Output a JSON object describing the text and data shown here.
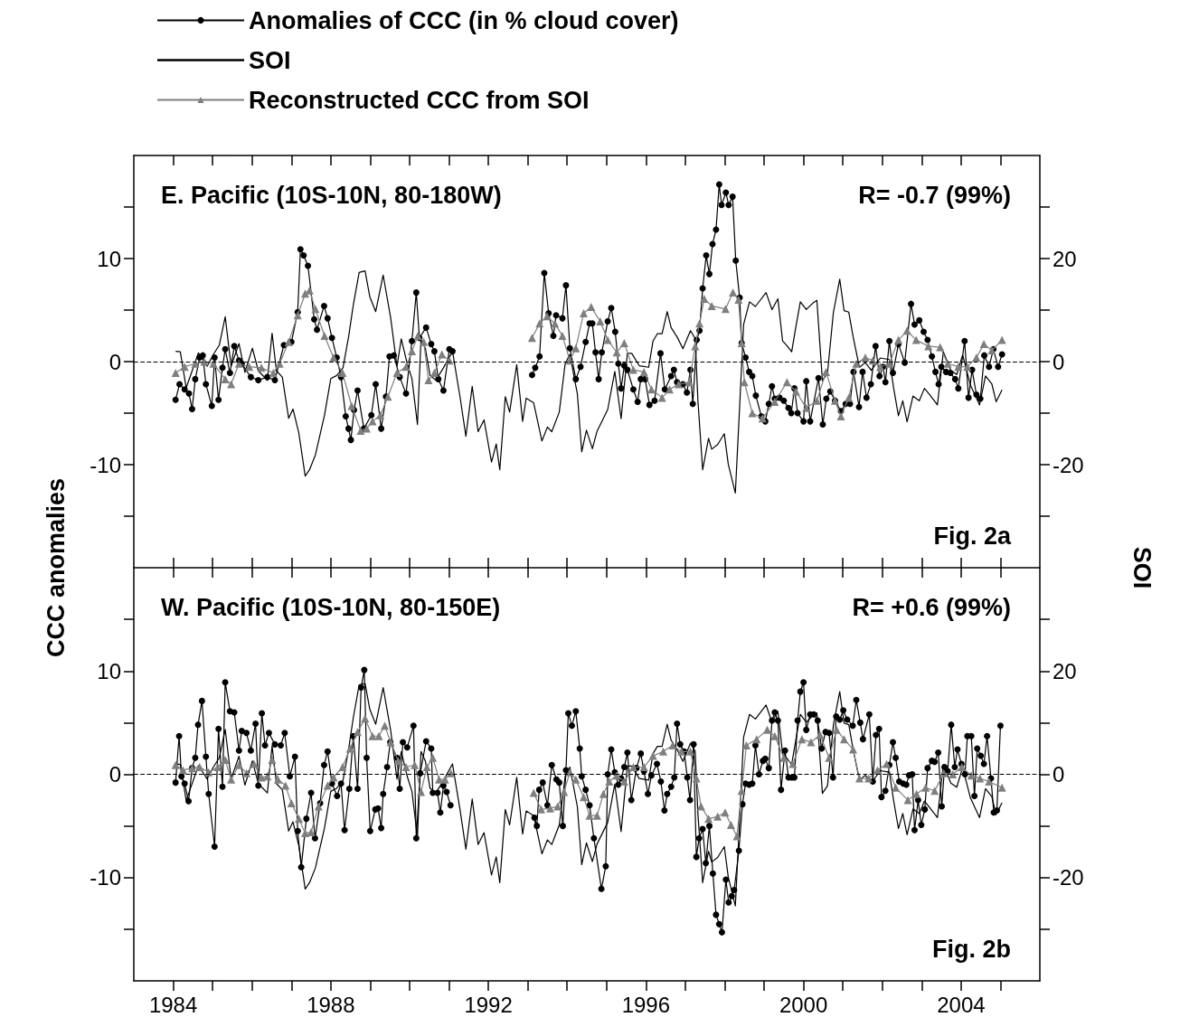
{
  "chart_data": [
    {
      "type": "line",
      "ylabel": "CCC anomalies",
      "y2label": "SOI",
      "legend": "top left",
      "tick_labels": "y",
      "annotations": [
        "E. Pacific (10S-10N, 80-180W)",
        "R= -0.7 (99%)",
        "Fig. 2a"
      ],
      "xlim": [
        1983,
        2006
      ],
      "xticks": [
        1984,
        1985,
        1986,
        1987,
        1988,
        1989,
        1990,
        1991,
        1992,
        1993,
        1994,
        1995,
        1996,
        1997,
        1998,
        1999,
        2000,
        2001,
        2002,
        2003,
        2004,
        2005
      ],
      "ylim": [
        -20,
        20
      ],
      "yticks": [
        {
          "value": -15,
          "label": null
        },
        -10,
        {
          "value": -5,
          "label": null
        },
        0,
        {
          "value": 5,
          "label": null
        },
        10,
        {
          "value": 15,
          "label": null
        }
      ],
      "y2lim": [
        -40,
        40
      ],
      "y2ticks": [
        {
          "value": -30,
          "label": null
        },
        -20,
        {
          "value": -10,
          "label": null
        },
        0,
        {
          "value": 10,
          "label": null
        },
        20,
        {
          "value": 30,
          "label": null
        }
      ],
      "ref_lines": [
        {
          "axis": "y",
          "value": 0,
          "line_style": "dashed",
          "color": "#000000"
        }
      ],
      "series": [
        {
          "name": "Anomalies of CCC (in % cloud cover)",
          "color": "#000000",
          "marker": "circle",
          "x": [
            1984.06,
            1984.16,
            1984.29,
            1984.4,
            1984.48,
            1984.56,
            1984.67,
            1984.75,
            1984.83,
            1984.98,
            1985.05,
            1985.15,
            1985.25,
            1985.32,
            1985.44,
            1985.55,
            1985.67,
            1985.74,
            1985.97,
            1986.16,
            1986.39,
            1986.58,
            1986.81,
            1987.0,
            1987.16,
            1987.23,
            1987.31,
            1987.42,
            1987.58,
            1987.65,
            1987.83,
            1987.92,
            1988.03,
            1988.15,
            1988.26,
            1988.38,
            1988.45,
            1988.51,
            1988.59,
            1988.68,
            1988.84,
            1989.03,
            1989.14,
            1989.28,
            1989.4,
            1989.49,
            1989.6,
            1989.75,
            1989.91,
            1990.06,
            1990.17,
            1990.25,
            1990.42,
            1990.55,
            1990.63,
            1990.73,
            1990.86,
            1991.01,
            1991.09,
            1992.0,
            1993.11,
            1993.19,
            1993.3,
            1993.42,
            1993.53,
            1993.65,
            1993.72,
            1993.88,
            1993.97,
            1994.07,
            1994.22,
            1994.34,
            1994.47,
            1994.57,
            1994.64,
            1994.72,
            1994.8,
            1994.88,
            1995.03,
            1995.12,
            1995.22,
            1995.3,
            1995.37,
            1995.45,
            1995.53,
            1995.68,
            1995.79,
            1995.87,
            1995.98,
            1996.09,
            1996.22,
            1996.37,
            1996.48,
            1996.64,
            1996.71,
            1996.79,
            1996.94,
            1997.04,
            1997.13,
            1997.19,
            1997.29,
            1997.36,
            1997.44,
            1997.53,
            1997.61,
            1997.69,
            1997.78,
            1997.86,
            1997.92,
            1998.03,
            1998.1,
            1998.2,
            1998.28,
            1998.38,
            1998.43,
            1998.53,
            1998.62,
            1998.7,
            1998.79,
            1998.93,
            1999.03,
            1999.12,
            1999.2,
            1999.27,
            1999.39,
            1999.5,
            1999.62,
            1999.69,
            1999.77,
            1999.85,
            2000.0,
            2000.07,
            2000.17,
            2000.38,
            2000.49,
            2000.58,
            2000.68,
            2000.8,
            2000.95,
            2001.07,
            2001.18,
            2001.27,
            2001.41,
            2001.5,
            2001.6,
            2001.71,
            2001.83,
            2001.93,
            2002.02,
            2002.08,
            2002.18,
            2002.27,
            2002.41,
            2002.57,
            2002.73,
            2002.82,
            2002.94,
            2003.05,
            2003.15,
            2003.26,
            2003.35,
            2003.43,
            2003.5,
            2003.62,
            2003.73,
            2003.85,
            2003.93,
            2004.09,
            2004.19,
            2004.28,
            2004.39,
            2004.49,
            2004.59,
            2004.71,
            2004.82,
            2004.94,
            2005.04
          ],
          "values": [
            -3.7,
            -2.2,
            -2.7,
            -3.1,
            -4.6,
            -1.7,
            0.4,
            0.6,
            -2.2,
            -4.3,
            0.4,
            -3.7,
            -0.6,
            1.2,
            -1.1,
            1.5,
            0.1,
            -0.2,
            -1.5,
            -1.8,
            -1.5,
            -1.8,
            1.6,
            1.9,
            4.8,
            10.9,
            10.3,
            9.3,
            4.1,
            3.1,
            5.4,
            4.2,
            2.3,
            0.4,
            -1.5,
            -5.3,
            -6.5,
            -7.6,
            -4.7,
            -2.8,
            -6.5,
            -5.2,
            -2.2,
            -6.5,
            -3.4,
            0.5,
            0.6,
            -1.5,
            -3.1,
            2.0,
            6.7,
            2.3,
            3.3,
            1.7,
            1.0,
            -1.7,
            -2.8,
            1.2,
            1.0,
            null,
            -1.3,
            -0.6,
            0.5,
            8.6,
            4.7,
            2.5,
            4.5,
            4.2,
            7.4,
            1.3,
            -1.7,
            -0.5,
            1.9,
            3.7,
            3.7,
            0.9,
            -1.7,
            0.9,
            3.9,
            5.2,
            2.9,
            -0.2,
            -2.6,
            -0.4,
            -0.8,
            -2.7,
            -3.9,
            -1.7,
            -1.7,
            -4.2,
            -3.8,
            0.8,
            -2.7,
            -1.4,
            -0.8,
            -2.0,
            -2.2,
            -3.0,
            -0.8,
            -4.1,
            2.1,
            3.0,
            7.1,
            10.3,
            8.5,
            11.4,
            12.8,
            17.2,
            15.2,
            16.4,
            15.2,
            16.0,
            9.8,
            6.2,
            1.8,
            0.4,
            -1.0,
            -1.4,
            -3.3,
            -5.3,
            -5.8,
            -4.1,
            -2.4,
            -3.6,
            -3.5,
            -3.8,
            -4.5,
            -5.0,
            -2.6,
            -5.0,
            -5.8,
            -1.9,
            -5.8,
            -1.6,
            -6.1,
            -3.6,
            -2.9,
            -3.8,
            -4.8,
            -4.1,
            -4.1,
            -1.0,
            -4.4,
            -1.0,
            -3.5,
            -2.2,
            1.5,
            -1.4,
            -0.5,
            -2.0,
            2.0,
            -1.1,
            1.7,
            -0.1,
            5.6,
            3.6,
            4.0,
            2.9,
            2.1,
            0.5,
            -1.0,
            -2.2,
            -0.5,
            -1.0,
            -1.1,
            -1.7,
            -2.6,
            2.0,
            -3.5,
            -0.8,
            -3.2,
            -3.6,
            0.6,
            -0.5,
            1.2,
            -0.5,
            0.7
          ]
        },
        {
          "name": "SOI",
          "color": "#000000",
          "marker": "none",
          "axis": "y2",
          "x": [
            1984.06,
            1984.18,
            1984.33,
            1984.64,
            1984.86,
            1985.02,
            1985.17,
            1985.32,
            1985.47,
            1985.67,
            1985.82,
            1986.01,
            1986.16,
            1986.39,
            1986.51,
            1986.62,
            1986.77,
            1986.93,
            1987.04,
            1987.19,
            1987.35,
            1987.46,
            1987.61,
            1987.84,
            1988.0,
            1988.15,
            1988.31,
            1988.45,
            1988.57,
            1988.72,
            1988.87,
            1988.99,
            1989.14,
            1989.33,
            1989.52,
            1989.68,
            1989.79,
            1989.94,
            1990.06,
            1990.2,
            1990.29,
            1990.4,
            1990.52,
            1990.67,
            1990.86,
            1991.09,
            1991.28,
            1991.43,
            1991.59,
            1991.74,
            1991.89,
            1992.08,
            1992.2,
            1992.29,
            1992.43,
            1992.54,
            1992.72,
            1992.87,
            1992.96,
            1993.15,
            1993.36,
            1993.5,
            1993.61,
            1993.8,
            1993.95,
            1994.07,
            1994.26,
            1994.37,
            1994.49,
            1994.64,
            1994.76,
            1995.03,
            1995.21,
            1995.37,
            1995.53,
            1995.64,
            1995.83,
            1996.07,
            1996.18,
            1996.29,
            1996.41,
            1996.54,
            1996.64,
            1996.79,
            1996.94,
            1997.13,
            1997.25,
            1997.32,
            1997.44,
            1997.59,
            1997.67,
            1997.82,
            1997.99,
            1998.09,
            1998.27,
            1998.36,
            1998.48,
            1998.63,
            1998.78,
            1999.05,
            1999.2,
            1999.35,
            1999.47,
            1999.58,
            1999.7,
            1999.81,
            1999.92,
            2000.07,
            2000.23,
            2000.34,
            2000.48,
            2000.61,
            2000.76,
            2000.92,
            2001.03,
            2001.15,
            2001.26,
            2001.42,
            2001.57,
            2001.72,
            2001.95,
            2002.18,
            2002.29,
            2002.41,
            2002.52,
            2002.63,
            2002.78,
            2002.94,
            2003.07,
            2003.2,
            2003.4,
            2003.55,
            2003.74,
            2003.89,
            2004.04,
            2004.24,
            2004.47,
            2004.62,
            2004.78,
            2004.89,
            2005.04
          ],
          "values": [
            2.0,
            1.9,
            -5.1,
            1.7,
            -0.9,
            1.4,
            3.2,
            8.7,
            -0.9,
            3.5,
            -2.1,
            2.6,
            -1.8,
            -3.6,
            5.5,
            -1.8,
            -3.0,
            -11.0,
            -9.2,
            -13.9,
            -22.2,
            -21.0,
            -18.1,
            -10.4,
            -3.3,
            -2.7,
            -1.2,
            4.7,
            10.9,
            17.3,
            17.6,
            12.6,
            9.7,
            16.8,
            8.5,
            -0.9,
            4.4,
            -0.4,
            -3.3,
            -12.2,
            4.4,
            2.6,
            -2.7,
            -3.6,
            -1.2,
            2.0,
            -6.8,
            -14.5,
            -4.8,
            -13.6,
            -11.3,
            -19.5,
            -16.0,
            -21.0,
            -6.8,
            -9.8,
            -0.6,
            -11.6,
            -7.1,
            -8.0,
            -15.4,
            -12.7,
            -13.6,
            -9.8,
            -0.4,
            1.4,
            -6.3,
            -17.5,
            -13.3,
            -16.9,
            -13.5,
            -9.3,
            -1.9,
            -11.1,
            1.6,
            1.6,
            -0.8,
            -1.1,
            4.0,
            5.4,
            5.4,
            9.7,
            6.6,
            4.8,
            2.5,
            6.0,
            4.5,
            -7.6,
            -21.0,
            -14.9,
            -17.0,
            -16.1,
            -14.0,
            -19.9,
            -25.5,
            -11.7,
            7.2,
            11.6,
            10.7,
            13.4,
            10.1,
            12.2,
            4.0,
            3.1,
            1.9,
            6.9,
            11.6,
            10.1,
            11.3,
            11.9,
            -3.7,
            -2.2,
            9.6,
            16.0,
            9.9,
            9.6,
            4.8,
            -1.1,
            -0.2,
            -1.7,
            0.7,
            0.4,
            -5.2,
            -10.5,
            -7.6,
            -11.7,
            -6.7,
            -7.6,
            -5.2,
            -6.4,
            -8.4,
            1.9,
            -1.7,
            -2.5,
            1.3,
            -4.6,
            -8.4,
            -2.8,
            -4.3,
            -7.8,
            -5.5
          ]
        },
        {
          "name": "Reconstructed CCC from SOI",
          "color": "#7f7f7f",
          "marker": "triangle",
          "x": [
            1984.06,
            1984.29,
            1984.56,
            1984.79,
            1985.02,
            1985.32,
            1985.47,
            1985.67,
            1985.93,
            1986.24,
            1986.54,
            1986.7,
            1986.93,
            1987.16,
            1987.35,
            1987.46,
            1987.61,
            1987.84,
            1988.07,
            1988.3,
            1988.53,
            1988.76,
            1988.91,
            1989.06,
            1989.26,
            1989.45,
            1989.68,
            1989.91,
            1990.06,
            1990.21,
            1990.36,
            1990.48,
            1990.63,
            1990.82,
            1991.01,
            1992.0,
            1993.11,
            1993.3,
            1993.49,
            1993.69,
            1993.88,
            1994.07,
            1994.22,
            1994.42,
            1994.61,
            1994.84,
            1995.03,
            1995.26,
            1995.45,
            1995.68,
            1995.95,
            1996.14,
            1996.41,
            1996.6,
            1996.83,
            1997.1,
            1997.25,
            1997.36,
            1997.48,
            1997.67,
            1998.02,
            1998.21,
            1998.35,
            1998.43,
            1998.5,
            1998.7,
            1998.96,
            1999.27,
            1999.58,
            1999.81,
            2000.07,
            2000.34,
            2000.57,
            2000.8,
            2000.95,
            2001.15,
            2001.34,
            2001.57,
            2001.76,
            2001.95,
            2002.18,
            2002.41,
            2002.63,
            2002.86,
            2003.17,
            2003.47,
            2003.66,
            2003.93,
            2004.16,
            2004.39,
            2004.58,
            2004.78,
            2005.04
          ],
          "values": [
            -1.1,
            -0.5,
            -0.2,
            0.0,
            -0.2,
            -1.7,
            -2.2,
            -0.2,
            -0.5,
            -0.6,
            -1.1,
            -0.2,
            1.9,
            4.5,
            6.6,
            6.9,
            5.1,
            2.5,
            0.4,
            -1.1,
            -4.3,
            -6.7,
            -6.5,
            -5.8,
            -5.2,
            -3.4,
            -1.1,
            -0.5,
            1.0,
            2.5,
            1.9,
            -1.8,
            -1.1,
            0.7,
            0.1,
            null,
            2.3,
            3.7,
            4.4,
            3.7,
            2.5,
            0.1,
            1.3,
            4.7,
            5.3,
            3.9,
            2.1,
            0.9,
            1.8,
            -0.8,
            -1.0,
            -2.7,
            -3.5,
            -2.7,
            -2.2,
            -2.0,
            1.5,
            3.7,
            6.1,
            5.4,
            5.1,
            6.7,
            6.0,
            1.8,
            -2.0,
            -5.0,
            -5.5,
            -3.9,
            -2.0,
            -2.9,
            -4.5,
            -3.8,
            -1.0,
            -3.8,
            -5.3,
            -3.5,
            -0.2,
            0.4,
            0.1,
            -0.5,
            -0.2,
            2.1,
            3.0,
            2.1,
            1.5,
            1.4,
            -0.2,
            -0.5,
            -0.5,
            0.4,
            1.7,
            1.1,
            2.1
          ]
        }
      ]
    },
    {
      "type": "line",
      "annotations": [
        "W. Pacific (10S-10N, 80-150E)",
        "R= +0.6 (99%)",
        "Fig. 2b"
      ],
      "xlim": [
        1983,
        2006
      ],
      "xticks": [
        {
          "value": 1984,
          "label": "1984"
        },
        {
          "value": 1985,
          "label": null
        },
        {
          "value": 1986,
          "label": null
        },
        {
          "value": 1987,
          "label": null
        },
        {
          "value": 1988,
          "label": "1988"
        },
        {
          "value": 1989,
          "label": null
        },
        {
          "value": 1990,
          "label": null
        },
        {
          "value": 1991,
          "label": null
        },
        {
          "value": 1992,
          "label": "1992"
        },
        {
          "value": 1993,
          "label": null
        },
        {
          "value": 1994,
          "label": null
        },
        {
          "value": 1995,
          "label": null
        },
        {
          "value": 1996,
          "label": "1996"
        },
        {
          "value": 1997,
          "label": null
        },
        {
          "value": 1998,
          "label": null
        },
        {
          "value": 1999,
          "label": null
        },
        {
          "value": 2000,
          "label": "2000"
        },
        {
          "value": 2001,
          "label": null
        },
        {
          "value": 2002,
          "label": null
        },
        {
          "value": 2003,
          "label": null
        },
        {
          "value": 2004,
          "label": "2004"
        },
        {
          "value": 2005,
          "label": null
        }
      ],
      "ylim": [
        -20,
        20
      ],
      "yticks": [
        {
          "value": -15,
          "label": null
        },
        -10,
        {
          "value": -5,
          "label": null
        },
        0,
        {
          "value": 5,
          "label": null
        },
        10,
        {
          "value": 15,
          "label": null
        }
      ],
      "y2lim": [
        -40,
        40
      ],
      "y2ticks": [
        {
          "value": -30,
          "label": null
        },
        -20,
        {
          "value": -10,
          "label": null
        },
        0,
        {
          "value": 10,
          "label": null
        },
        20,
        {
          "value": 30,
          "label": null
        }
      ],
      "ref_lines": [
        {
          "axis": "y",
          "value": 0,
          "line_style": "dashed",
          "color": "#000000"
        }
      ],
      "series": [
        {
          "color": "#000000",
          "marker": "circle",
          "x": [
            1984.06,
            1984.15,
            1984.21,
            1984.29,
            1984.39,
            1984.48,
            1984.56,
            1984.63,
            1984.73,
            1984.83,
            1984.9,
            1985.05,
            1985.15,
            1985.25,
            1985.32,
            1985.44,
            1985.55,
            1985.67,
            1985.74,
            1985.86,
            1985.97,
            1986.09,
            1986.16,
            1986.25,
            1986.33,
            1986.43,
            1986.58,
            1986.73,
            1986.83,
            1986.96,
            1987.09,
            1987.16,
            1987.25,
            1987.38,
            1987.5,
            1987.6,
            1987.73,
            1987.83,
            1987.92,
            1988.03,
            1988.16,
            1988.26,
            1988.35,
            1988.47,
            1988.57,
            1988.68,
            1988.77,
            1988.85,
            1988.91,
            1989.0,
            1989.13,
            1989.2,
            1989.28,
            1989.33,
            1989.43,
            1989.51,
            1989.68,
            1989.75,
            1989.83,
            1989.94,
            1990.1,
            1990.17,
            1990.27,
            1990.42,
            1990.55,
            1990.59,
            1990.71,
            1990.78,
            1990.86,
            1990.94,
            1991.04,
            1992.0,
            1993.17,
            1993.23,
            1993.29,
            1993.38,
            1993.5,
            1993.61,
            1993.73,
            1993.8,
            1993.89,
            1993.97,
            1994.03,
            1994.12,
            1994.22,
            1994.32,
            1994.37,
            1994.47,
            1994.57,
            1994.68,
            1994.87,
            1994.98,
            1995.03,
            1995.12,
            1995.21,
            1995.3,
            1995.37,
            1995.45,
            1995.53,
            1995.63,
            1995.76,
            1995.87,
            1995.95,
            1996.05,
            1996.14,
            1996.28,
            1996.38,
            1996.47,
            1996.54,
            1996.64,
            1996.72,
            1996.79,
            1996.87,
            1996.97,
            1997.05,
            1997.12,
            1997.21,
            1997.28,
            1997.35,
            1997.44,
            1997.52,
            1997.61,
            1997.7,
            1997.78,
            1997.86,
            1997.93,
            1998.03,
            1998.1,
            1998.18,
            1998.24,
            1998.36,
            1998.45,
            1998.53,
            1998.62,
            1998.7,
            1998.78,
            1998.87,
            1998.97,
            1999.03,
            1999.12,
            1999.2,
            1999.27,
            1999.35,
            1999.43,
            1999.53,
            1999.62,
            1999.7,
            1999.77,
            1999.85,
            1999.92,
            2000.0,
            2000.07,
            2000.17,
            2000.26,
            2000.36,
            2000.46,
            2000.56,
            2000.65,
            2000.75,
            2000.83,
            2000.92,
            2001.01,
            2001.11,
            2001.25,
            2001.34,
            2001.44,
            2001.51,
            2001.67,
            2001.76,
            2001.84,
            2001.92,
            2001.98,
            2002.08,
            2002.18,
            2002.27,
            2002.34,
            2002.43,
            2002.53,
            2002.61,
            2002.68,
            2002.76,
            2002.82,
            2002.91,
            2002.99,
            2003.08,
            2003.15,
            2003.26,
            2003.33,
            2003.42,
            2003.51,
            2003.58,
            2003.66,
            2003.75,
            2003.84,
            2003.91,
            2004.01,
            2004.1,
            2004.16,
            2004.26,
            2004.34,
            2004.41,
            2004.5,
            2004.58,
            2004.66,
            2004.76,
            2004.83,
            2004.91,
            2005.0
          ],
          "values": [
            -0.8,
            3.7,
            -0.2,
            -0.9,
            -2.6,
            0.6,
            1.6,
            4.8,
            7.1,
            1.7,
            -1.9,
            -7.0,
            4.4,
            -1.2,
            8.9,
            6.1,
            6.0,
            2.3,
            4.2,
            4.0,
            2.3,
            4.9,
            -1.1,
            5.9,
            2.8,
            4.0,
            2.9,
            2.8,
            4.0,
            -0.2,
            1.7,
            -5.5,
            -9.0,
            -4.3,
            -1.8,
            -6.2,
            -2.8,
            0.9,
            2.2,
            -0.9,
            -2.1,
            -0.9,
            -5.4,
            -1.4,
            3.7,
            -1.4,
            8.4,
            10.1,
            1.6,
            -5.5,
            -3.4,
            -3.3,
            -5.2,
            -1.9,
            0.7,
            3.1,
            1.6,
            -1.4,
            3.1,
            2.6,
            4.7,
            -6.2,
            0.1,
            3.2,
            2.5,
            -1.8,
            -1.8,
            -3.7,
            -1.1,
            -1.7,
            -3.0,
            null,
            -4.2,
            -5.0,
            -1.5,
            -0.8,
            -3.0,
            0.9,
            -0.5,
            -0.8,
            -5.0,
            0.4,
            5.9,
            4.7,
            6.1,
            2.5,
            -0.2,
            -1.5,
            -3.0,
            -6.2,
            -11.1,
            -8.9,
            0.0,
            2.4,
            0.2,
            -1.0,
            -0.4,
            0.7,
            2.1,
            -2.5,
            0.6,
            2.0,
            0.3,
            -1.9,
            -0.1,
            1.0,
            -0.7,
            -3.5,
            -1.9,
            -1.2,
            -0.3,
            4.9,
            2.9,
            2.2,
            -0.3,
            -2.5,
            2.9,
            -8.0,
            -6.2,
            -5.3,
            -8.6,
            -5.0,
            -9.6,
            -13.6,
            -14.5,
            -15.3,
            -10.2,
            -12.4,
            -11.8,
            -11.2,
            -7.4,
            -2.9,
            -0.9,
            -1.0,
            -0.9,
            2.8,
            0.0,
            1.3,
            1.5,
            0.6,
            5.2,
            6.0,
            5.2,
            -1.5,
            2.3,
            -0.3,
            -0.3,
            -0.3,
            5.2,
            8.0,
            8.9,
            4.3,
            5.8,
            5.8,
            5.2,
            2.5,
            4.1,
            4.0,
            -0.3,
            5.6,
            5.3,
            6.2,
            5.3,
            4.7,
            7.2,
            5.0,
            3.4,
            5.8,
            -0.7,
            3.8,
            4.4,
            -2.2,
            -1.6,
            0.9,
            3.1,
            1.6,
            -0.7,
            -0.9,
            -1.0,
            -0.1,
            0.0,
            -5.4,
            -2.5,
            -4.9,
            -3.4,
            0.6,
            1.3,
            1.2,
            2.1,
            -3.1,
            0.7,
            0.3,
            4.8,
            0.7,
            2.4,
            1.0,
            0.0,
            3.7,
            3.7,
            -2.1,
            2.5,
            1.8,
            1.0,
            3.7,
            -0.4,
            -3.7,
            -3.5,
            4.7
          ]
        },
        {
          "color": "#000000",
          "marker": "none",
          "axis": "y2",
          "x": [
            1984.06,
            1984.18,
            1984.33,
            1984.64,
            1984.86,
            1985.02,
            1985.17,
            1985.32,
            1985.47,
            1985.67,
            1985.82,
            1986.01,
            1986.16,
            1986.39,
            1986.51,
            1986.62,
            1986.77,
            1986.93,
            1987.04,
            1987.19,
            1987.35,
            1987.46,
            1987.61,
            1987.84,
            1988.0,
            1988.15,
            1988.31,
            1988.45,
            1988.57,
            1988.72,
            1988.87,
            1988.99,
            1989.14,
            1989.33,
            1989.52,
            1989.68,
            1989.79,
            1989.94,
            1990.06,
            1990.2,
            1990.29,
            1990.4,
            1990.52,
            1990.67,
            1990.86,
            1991.09,
            1991.28,
            1991.43,
            1991.59,
            1991.74,
            1991.89,
            1992.08,
            1992.2,
            1992.29,
            1992.43,
            1992.54,
            1992.72,
            1992.87,
            1992.96,
            1993.15,
            1993.36,
            1993.5,
            1993.61,
            1993.8,
            1993.95,
            1994.07,
            1994.26,
            1994.37,
            1994.49,
            1994.64,
            1994.76,
            1995.03,
            1995.21,
            1995.37,
            1995.53,
            1995.64,
            1995.83,
            1996.07,
            1996.18,
            1996.29,
            1996.41,
            1996.54,
            1996.64,
            1996.79,
            1996.94,
            1997.13,
            1997.25,
            1997.32,
            1997.44,
            1997.59,
            1997.67,
            1997.82,
            1997.99,
            1998.09,
            1998.27,
            1998.36,
            1998.48,
            1998.63,
            1998.78,
            1999.05,
            1999.2,
            1999.35,
            1999.47,
            1999.58,
            1999.7,
            1999.81,
            1999.92,
            2000.07,
            2000.23,
            2000.34,
            2000.48,
            2000.61,
            2000.76,
            2000.92,
            2001.03,
            2001.15,
            2001.26,
            2001.42,
            2001.57,
            2001.72,
            2001.95,
            2002.18,
            2002.29,
            2002.41,
            2002.52,
            2002.63,
            2002.78,
            2002.94,
            2003.07,
            2003.2,
            2003.4,
            2003.55,
            2003.74,
            2003.89,
            2004.04,
            2004.24,
            2004.47,
            2004.62,
            2004.78,
            2004.89,
            2005.04
          ],
          "values": [
            2.0,
            1.9,
            -5.1,
            1.7,
            -0.9,
            1.4,
            3.2,
            8.7,
            -0.9,
            3.5,
            -2.1,
            2.6,
            -1.8,
            -3.6,
            5.5,
            -1.8,
            -3.0,
            -11.0,
            -9.2,
            -13.9,
            -22.2,
            -21.0,
            -18.1,
            -10.4,
            -3.3,
            -2.7,
            -1.2,
            4.7,
            10.9,
            17.3,
            17.6,
            12.6,
            9.7,
            16.8,
            8.5,
            -0.9,
            4.4,
            -0.4,
            -3.3,
            -12.2,
            4.4,
            2.6,
            -2.7,
            -3.6,
            -1.2,
            2.0,
            -6.8,
            -14.5,
            -4.8,
            -13.6,
            -11.3,
            -19.5,
            -16.0,
            -21.0,
            -6.8,
            -9.8,
            -0.6,
            -11.6,
            -7.1,
            -8.0,
            -15.4,
            -12.7,
            -13.6,
            -9.8,
            -0.4,
            1.4,
            -6.3,
            -17.5,
            -13.3,
            -16.9,
            -13.5,
            -9.3,
            -1.9,
            -11.1,
            1.6,
            1.6,
            -0.8,
            -1.1,
            4.0,
            5.4,
            5.4,
            9.7,
            6.6,
            4.8,
            2.5,
            6.0,
            4.5,
            -7.6,
            -21.0,
            -14.9,
            -17.0,
            -16.1,
            -14.0,
            -19.9,
            -25.5,
            -11.7,
            7.2,
            11.6,
            10.7,
            13.4,
            10.1,
            12.2,
            4.0,
            3.1,
            1.9,
            6.9,
            11.6,
            10.1,
            11.3,
            11.9,
            -3.7,
            -2.2,
            9.6,
            16.0,
            9.9,
            9.6,
            4.8,
            -1.1,
            -0.2,
            -1.7,
            0.7,
            0.4,
            -5.2,
            -10.5,
            -7.6,
            -11.7,
            -6.7,
            -7.6,
            -5.2,
            -6.4,
            -8.4,
            1.9,
            -1.7,
            -2.5,
            1.3,
            -4.6,
            -8.4,
            -2.8,
            -4.3,
            -7.8,
            -5.5
          ]
        },
        {
          "color": "#7f7f7f",
          "marker": "triangle",
          "x": [
            1984.06,
            1984.25,
            1984.48,
            1984.67,
            1984.9,
            1985.13,
            1985.32,
            1985.47,
            1985.67,
            1985.86,
            1986.05,
            1986.24,
            1986.39,
            1986.51,
            1986.66,
            1986.85,
            1987.0,
            1987.19,
            1987.35,
            1987.5,
            1987.69,
            1987.92,
            1988.07,
            1988.3,
            1988.49,
            1988.68,
            1988.87,
            1989.06,
            1989.22,
            1989.37,
            1989.52,
            1989.71,
            1989.91,
            1990.13,
            1990.29,
            1990.44,
            1990.59,
            1990.75,
            1990.9,
            1991.05,
            1992.0,
            1993.15,
            1993.34,
            1993.57,
            1993.76,
            1993.92,
            1994.07,
            1994.22,
            1994.42,
            1994.57,
            1994.76,
            1994.92,
            1995.07,
            1995.26,
            1995.45,
            1995.68,
            1995.95,
            1996.18,
            1996.44,
            1996.68,
            1996.9,
            1997.13,
            1997.28,
            1997.4,
            1997.59,
            1997.82,
            1998.01,
            1998.16,
            1998.31,
            1998.43,
            1998.55,
            1998.81,
            1999.08,
            1999.27,
            1999.5,
            1999.73,
            1999.96,
            2000.19,
            2000.42,
            2000.65,
            2000.84,
            2001.03,
            2001.26,
            2001.42,
            2001.65,
            2001.88,
            2002.11,
            2002.34,
            2002.65,
            2002.87,
            2003.1,
            2003.33,
            2003.56,
            2003.79,
            2004.02,
            2004.26,
            2004.48,
            2004.71,
            2005.04
          ],
          "values": [
            0.9,
            0.4,
            0.6,
            0.7,
            0.2,
            0.7,
            1.4,
            -0.5,
            0.9,
            0.1,
            1.0,
            -0.3,
            -0.2,
            1.4,
            -0.5,
            -1.1,
            -2.8,
            -4.3,
            -5.7,
            -5.6,
            -3.1,
            -1.1,
            -0.3,
            0.7,
            2.5,
            4.1,
            5.4,
            3.7,
            3.7,
            4.7,
            3.1,
            1.3,
            0.7,
            0.9,
            -1.7,
            0.7,
            1.6,
            -0.5,
            -0.5,
            0.1,
            null,
            -1.8,
            -3.4,
            -3.3,
            -3.1,
            -1.7,
            0.2,
            -0.5,
            -2.2,
            -4.0,
            -4.0,
            -1.9,
            -0.7,
            -0.1,
            -0.7,
            0.7,
            0.7,
            1.8,
            2.2,
            2.8,
            2.2,
            2.2,
            -0.4,
            -3.1,
            -4.3,
            -4.1,
            -3.7,
            -4.9,
            -6.0,
            -1.6,
            2.8,
            3.4,
            4.3,
            3.7,
            1.6,
            1.0,
            3.4,
            3.1,
            3.8,
            1.6,
            4.3,
            3.4,
            2.4,
            -0.4,
            -0.4,
            0.4,
            1.0,
            -1.3,
            -2.5,
            -1.9,
            -1.3,
            -1.6,
            0.1,
            0.0,
            0.7,
            -0.1,
            -0.4,
            -0.7,
            -1.3
          ]
        }
      ]
    }
  ]
}
